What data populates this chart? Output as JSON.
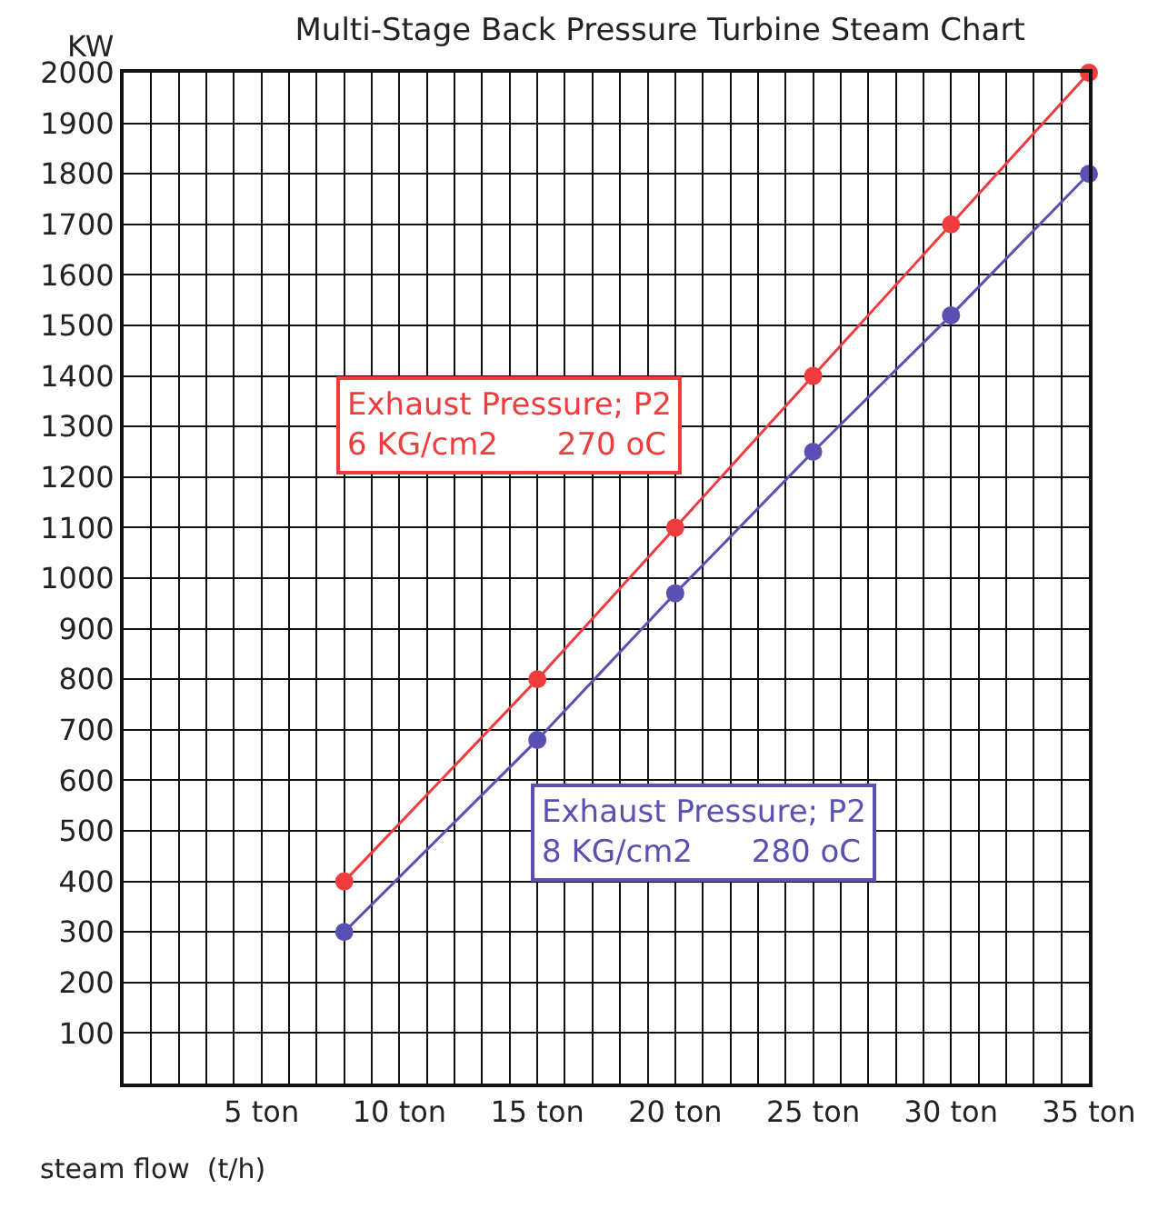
{
  "chart_data": {
    "type": "line",
    "title": "Multi-Stage Back Pressure Turbine Steam Chart",
    "xlabel": "steam flow  (t/h)",
    "ylabel": "KW",
    "x": [
      8,
      15,
      20,
      25,
      30,
      35
    ],
    "series": [
      {
        "name": "Exhaust Pressure; P2\n6 KG/cm2      270 oC",
        "color": "#f03c3c",
        "values": [
          400,
          800,
          1100,
          1400,
          1700,
          2000
        ]
      },
      {
        "name": "Exhaust Pressure; P2\n8 KG/cm2      280 oC",
        "color": "#5a50b4",
        "values": [
          300,
          680,
          970,
          1250,
          1520,
          1800
        ]
      }
    ],
    "xlim": [
      0,
      35
    ],
    "xticks": [
      {
        "value": 1,
        "label": null
      },
      {
        "value": 2,
        "label": null
      },
      {
        "value": 3,
        "label": null
      },
      {
        "value": 4,
        "label": null
      },
      {
        "value": 5,
        "label": "5 ton"
      },
      {
        "value": 6,
        "label": null
      },
      {
        "value": 7,
        "label": null
      },
      {
        "value": 8,
        "label": null
      },
      {
        "value": 9,
        "label": null
      },
      {
        "value": 10,
        "label": "10 ton"
      },
      {
        "value": 11,
        "label": null
      },
      {
        "value": 12,
        "label": null
      },
      {
        "value": 13,
        "label": null
      },
      {
        "value": 14,
        "label": null
      },
      {
        "value": 15,
        "label": "15 ton"
      },
      {
        "value": 16,
        "label": null
      },
      {
        "value": 17,
        "label": null
      },
      {
        "value": 18,
        "label": null
      },
      {
        "value": 19,
        "label": null
      },
      {
        "value": 20,
        "label": "20 ton"
      },
      {
        "value": 21,
        "label": null
      },
      {
        "value": 22,
        "label": null
      },
      {
        "value": 23,
        "label": null
      },
      {
        "value": 24,
        "label": null
      },
      {
        "value": 25,
        "label": "25 ton"
      },
      {
        "value": 26,
        "label": null
      },
      {
        "value": 27,
        "label": null
      },
      {
        "value": 28,
        "label": null
      },
      {
        "value": 29,
        "label": null
      },
      {
        "value": 30,
        "label": "30 ton"
      },
      {
        "value": 31,
        "label": null
      },
      {
        "value": 32,
        "label": null
      },
      {
        "value": 33,
        "label": null
      },
      {
        "value": 34,
        "label": null
      },
      {
        "value": 35,
        "label": "35 ton"
      }
    ],
    "ylim": [
      0,
      2000
    ],
    "yticks": [
      100,
      200,
      300,
      400,
      500,
      600,
      700,
      800,
      900,
      1000,
      1100,
      1200,
      1300,
      1400,
      1500,
      1600,
      1700,
      1800,
      1900,
      2000
    ],
    "grid": true,
    "legend": false,
    "marker": "circle",
    "line_style": "solid"
  }
}
